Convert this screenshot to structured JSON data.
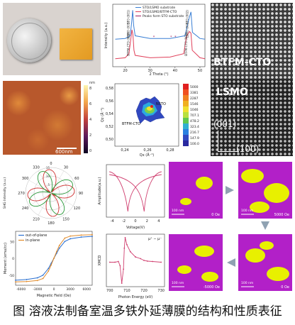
{
  "caption": "图 溶液法制备室温多铁外延薄膜的结构和性质表征",
  "photo": {
    "label": ""
  },
  "xrd": {
    "xlabel": "2 Theta (°)",
    "ylabel": "Intensity (a.u.)",
    "xticks": [
      "20",
      "30",
      "40",
      "50"
    ],
    "legend": [
      "STO/LSMO substrate",
      "STO/LSMO/BTFM-CTO",
      "Peaks form STO substrate"
    ],
    "annotations": [
      "STO (001)",
      "LSMO (001)",
      "BTFM-CTO (001)",
      "STO (002)",
      "LSMO (002)",
      "BTFM-CTO (002)"
    ],
    "colors": {
      "lsmo": "#3a7fd5",
      "btfm": "#e0405a",
      "peak": "#a02060"
    }
  },
  "stem": {
    "labels": [
      "BTFM-CTO",
      "LSMO",
      "(001)",
      "(100)"
    ]
  },
  "afm": {
    "scalebar": "600nm",
    "unit": "nm",
    "cbar_ticks": [
      "8",
      "6",
      "4",
      "2",
      "0"
    ]
  },
  "rsm": {
    "xlabel": "Qx (Å⁻¹)",
    "ylabel": "Qz (Å⁻¹)",
    "xticks": [
      "0,24",
      "0,26",
      "0,28"
    ],
    "yticks": [
      "0,50",
      "0,52",
      "0,54",
      "0,56",
      "0,58"
    ],
    "labels": [
      "NSTO",
      "BTFM-CTO"
    ],
    "cbar_ticks": [
      "5000",
      "3381",
      "2287",
      "1546",
      "1046",
      "707.1",
      "478.2",
      "323.4",
      "216.7",
      "147.9",
      "100.0"
    ]
  },
  "shg": {
    "ylabel": "SHG Intensity (a.u.)",
    "angle_ticks": [
      "0",
      "30",
      "60",
      "90",
      "120",
      "150",
      "180",
      "210",
      "240",
      "270",
      "300",
      "330"
    ],
    "radial_ticks": [
      "5",
      "10",
      "15"
    ]
  },
  "pfm": {
    "xlabel": "Voltage(V)",
    "ylabel": "Amplitude(a.u.)",
    "xticks": [
      "-4",
      "-2",
      "0",
      "2",
      "4"
    ]
  },
  "mh": {
    "xlabel": "Magnetic Field (Oe)",
    "ylabel": "Moment (emu/cc)",
    "xticks": [
      "-6000",
      "-3000",
      "0",
      "3000",
      "6000"
    ],
    "yticks": [
      "-50",
      "0",
      "50"
    ],
    "legend": [
      "out-of-plane",
      "in-plane"
    ],
    "colors": {
      "oop": "#2a6fd0",
      "ip": "#e08a2a"
    }
  },
  "xmcd": {
    "xlabel": "Photon Energy (eV)",
    "ylabel": "XMCD",
    "xticks": [
      "700",
      "710",
      "720",
      "730"
    ],
    "legend": "μ⁺ − μ⁻"
  },
  "mfm": {
    "labels": [
      "0 Oe",
      "5000 Oe",
      "-5000 Oe",
      "0 Oe"
    ],
    "scalebars": [
      "100 nm",
      "100 nm",
      "100 nm",
      "100 nm"
    ]
  },
  "chart_data": [
    {
      "type": "line",
      "title": "",
      "xlabel": "2 Theta (°)",
      "ylabel": "Intensity (a.u.)",
      "xlim": [
        15,
        52
      ],
      "series": [
        {
          "name": "STO/LSMO substrate",
          "x": [
            16,
            20,
            22,
            22.6,
            23,
            23.4,
            24,
            30,
            38,
            44,
            45.6,
            46.4,
            47,
            50,
            52
          ],
          "y": [
            0.1,
            0.12,
            0.2,
            0.6,
            0.95,
            0.5,
            0.2,
            0.12,
            0.12,
            0.2,
            0.7,
            0.9,
            0.3,
            0.12,
            0.1
          ]
        },
        {
          "name": "STO/LSMO/BTFM-CTO",
          "x": [
            16,
            20,
            21.5,
            22.2,
            22.7,
            23.1,
            23.5,
            24,
            30,
            38,
            43.5,
            44.6,
            45.8,
            46.4,
            46.9,
            50,
            52
          ],
          "y": [
            0.15,
            0.18,
            0.3,
            0.7,
            1.0,
            0.85,
            0.4,
            0.25,
            0.18,
            0.2,
            0.3,
            0.8,
            0.95,
            0.9,
            0.4,
            0.18,
            0.15
          ]
        }
      ]
    },
    {
      "type": "line",
      "title": "",
      "xlabel": "Magnetic Field (Oe)",
      "ylabel": "Moment (emu/cc)",
      "xlim": [
        -7000,
        7000
      ],
      "ylim": [
        -80,
        80
      ],
      "series": [
        {
          "name": "out-of-plane",
          "x": [
            -7000,
            -5000,
            -3000,
            -2000,
            -1000,
            -500,
            0,
            500,
            1000,
            2000,
            3000,
            5000,
            7000
          ],
          "y": [
            -65,
            -63,
            -58,
            -50,
            -30,
            -15,
            0,
            15,
            30,
            50,
            58,
            63,
            65
          ]
        },
        {
          "name": "in-plane",
          "x": [
            -7000,
            -5000,
            -3000,
            -2000,
            -1000,
            -500,
            0,
            500,
            1000,
            2000,
            3000,
            5000,
            7000
          ],
          "y": [
            -70,
            -69,
            -66,
            -60,
            -38,
            -20,
            0,
            20,
            38,
            60,
            66,
            69,
            70
          ]
        }
      ]
    },
    {
      "type": "line",
      "title": "",
      "xlabel": "Photon Energy (eV)",
      "ylabel": "XMCD",
      "xlim": [
        698,
        732
      ],
      "series": [
        {
          "name": "μ⁺ − μ⁻",
          "x": [
            700,
            703,
            705,
            706,
            707,
            708,
            708.5,
            709,
            710,
            712,
            715,
            718,
            720,
            722,
            725,
            730
          ],
          "y": [
            0,
            0,
            0.02,
            -0.1,
            -0.6,
            -0.2,
            0.4,
            0.7,
            0.5,
            0.3,
            0.15,
            0.1,
            0.05,
            0.03,
            0.02,
            0
          ]
        }
      ]
    }
  ]
}
